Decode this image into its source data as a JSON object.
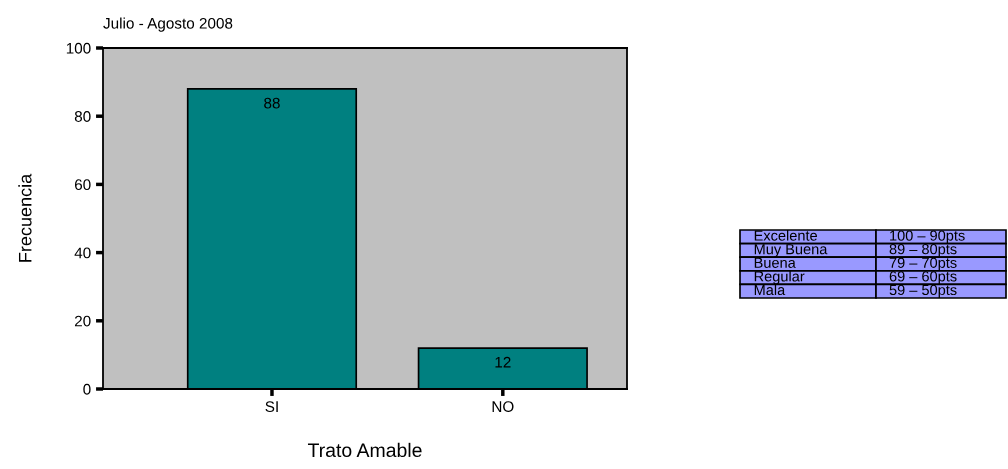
{
  "chart_data": {
    "type": "bar",
    "title": "Julio - Agosto 2008",
    "xlabel": "Trato Amable",
    "ylabel": "Frecuencia",
    "categories": [
      "SI",
      "NO"
    ],
    "values": [
      88,
      12
    ],
    "color": "#008080",
    "data_labels": true,
    "ylim": [
      0,
      100
    ],
    "yticks": [
      0,
      20,
      40,
      60,
      80,
      100
    ],
    "grid": false,
    "annotations": [
      "Excelente",
      "100 – 90pts",
      "Muy Buena",
      "89 – 80pts",
      "Buena",
      "79 – 70pts",
      "Regular",
      "69 – 60pts",
      "Mala",
      "59 – 50pts"
    ]
  }
}
